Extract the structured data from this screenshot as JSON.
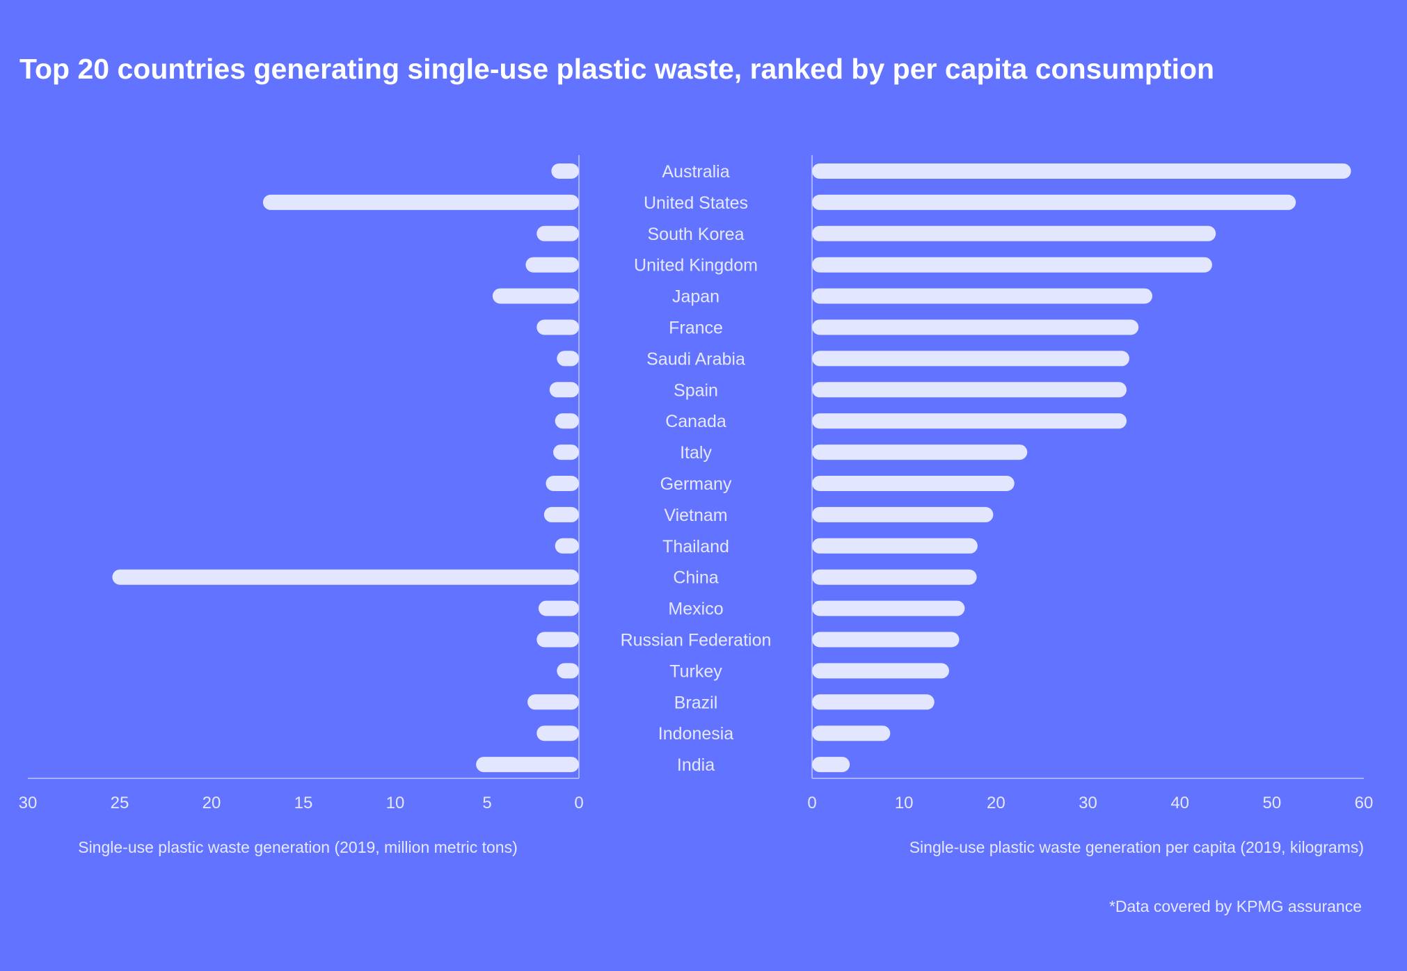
{
  "colors": {
    "background": "#6274FF",
    "bar": "#E3E6FF",
    "axis": "#A9B2FF",
    "text": "#E6E8FF"
  },
  "chart_data": {
    "type": "bar",
    "orientation": "horizontal",
    "title": "Top 20 countries generating single-use plastic waste, ranked by per capita consumption",
    "categories": [
      "Australia",
      "United States",
      "South Korea",
      "United Kingdom",
      "Japan",
      "France",
      "Saudi Arabia",
      "Spain",
      "Canada",
      "Italy",
      "Germany",
      "Vietnam",
      "Thailand",
      "China",
      "Mexico",
      "Russian Federation",
      "Turkey",
      "Brazil",
      "Indonesia",
      "India"
    ],
    "panels": [
      {
        "side": "left",
        "xlabel": "Single-use plastic waste generation (2019, million metric tons)",
        "xlim": [
          0,
          30
        ],
        "reversed": true,
        "ticks": [
          "30",
          "25",
          "20",
          "15",
          "10",
          "5",
          "0"
        ],
        "values": [
          1.5,
          17.2,
          2.3,
          2.9,
          4.7,
          2.3,
          1.2,
          1.6,
          1.3,
          1.4,
          1.8,
          1.9,
          1.3,
          25.4,
          2.2,
          2.3,
          1.2,
          2.8,
          2.3,
          5.6
        ]
      },
      {
        "side": "right",
        "xlabel": "Single-use plastic waste generation per capita (2019, kilograms)",
        "xlim": [
          0,
          60
        ],
        "reversed": false,
        "ticks": [
          "0",
          "10",
          "20",
          "30",
          "40",
          "50",
          "60"
        ],
        "values": [
          58.6,
          52.6,
          43.9,
          43.5,
          37.0,
          35.5,
          34.5,
          34.2,
          34.2,
          23.4,
          22.0,
          19.7,
          18.0,
          17.9,
          16.6,
          16.0,
          14.9,
          13.3,
          8.5,
          4.1
        ]
      }
    ],
    "grid": false,
    "legend": "none"
  },
  "footnote": "*Data covered by KPMG assurance"
}
